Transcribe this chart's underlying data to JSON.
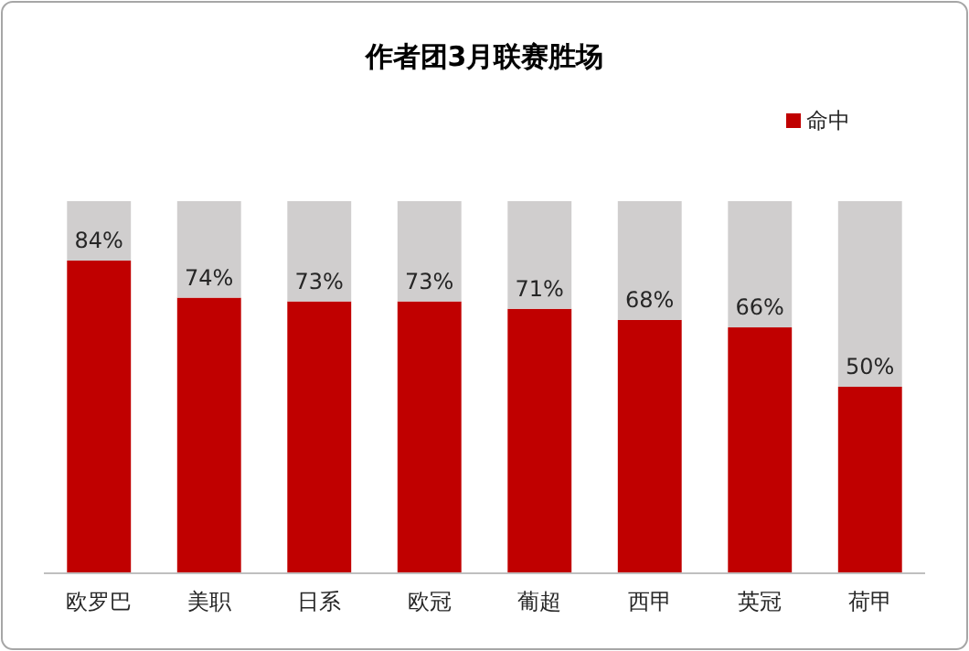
{
  "chart_data": {
    "type": "bar",
    "title": "作者团3月联赛胜场",
    "categories": [
      "欧罗巴",
      "美职",
      "日系",
      "欧冠",
      "葡超",
      "西甲",
      "英冠",
      "荷甲"
    ],
    "stacked": true,
    "legend": "top right",
    "series": [
      {
        "name": "命中",
        "color": "#c00000",
        "values": [
          84,
          74,
          73,
          73,
          71,
          68,
          66,
          50
        ],
        "value_labels": [
          "84%",
          "74%",
          "73%",
          "73%",
          "71%",
          "68%",
          "66%",
          "50%"
        ]
      },
      {
        "color": "#d0cece",
        "values": [
          16,
          26,
          27,
          27,
          29,
          32,
          34,
          50
        ]
      }
    ]
  }
}
